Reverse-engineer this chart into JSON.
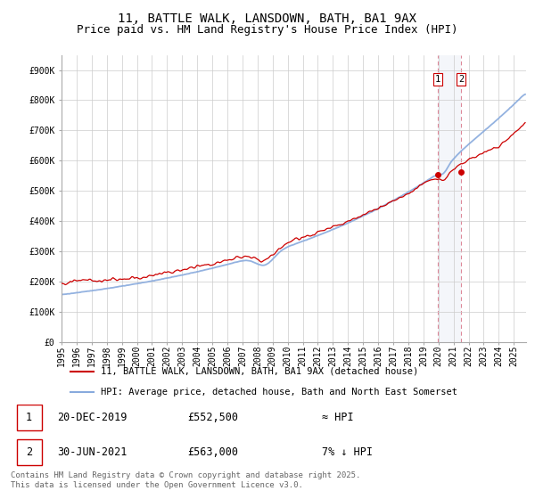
{
  "title": "11, BATTLE WALK, LANSDOWN, BATH, BA1 9AX",
  "subtitle": "Price paid vs. HM Land Registry's House Price Index (HPI)",
  "ylabel_ticks": [
    "£0",
    "£100K",
    "£200K",
    "£300K",
    "£400K",
    "£500K",
    "£600K",
    "£700K",
    "£800K",
    "£900K"
  ],
  "ytick_values": [
    0,
    100000,
    200000,
    300000,
    400000,
    500000,
    600000,
    700000,
    800000,
    900000
  ],
  "ylim": [
    0,
    950000
  ],
  "xlim_start": 1995.0,
  "xlim_end": 2025.8,
  "hpi_color": "#88aadd",
  "price_color": "#cc0000",
  "marker1_date": 2019.97,
  "marker1_price": 552500,
  "marker2_date": 2021.5,
  "marker2_price": 563000,
  "legend_line1": "11, BATTLE WALK, LANSDOWN, BATH, BA1 9AX (detached house)",
  "legend_line2": "HPI: Average price, detached house, Bath and North East Somerset",
  "table_row1": [
    "1",
    "20-DEC-2019",
    "£552,500",
    "≈ HPI"
  ],
  "table_row2": [
    "2",
    "30-JUN-2021",
    "£563,000",
    "7% ↓ HPI"
  ],
  "footnote": "Contains HM Land Registry data © Crown copyright and database right 2025.\nThis data is licensed under the Open Government Licence v3.0.",
  "bg_color": "#ffffff",
  "grid_color": "#cccccc",
  "title_fontsize": 10,
  "subtitle_fontsize": 9,
  "tick_fontsize": 7,
  "font_family": "DejaVu Sans Mono"
}
